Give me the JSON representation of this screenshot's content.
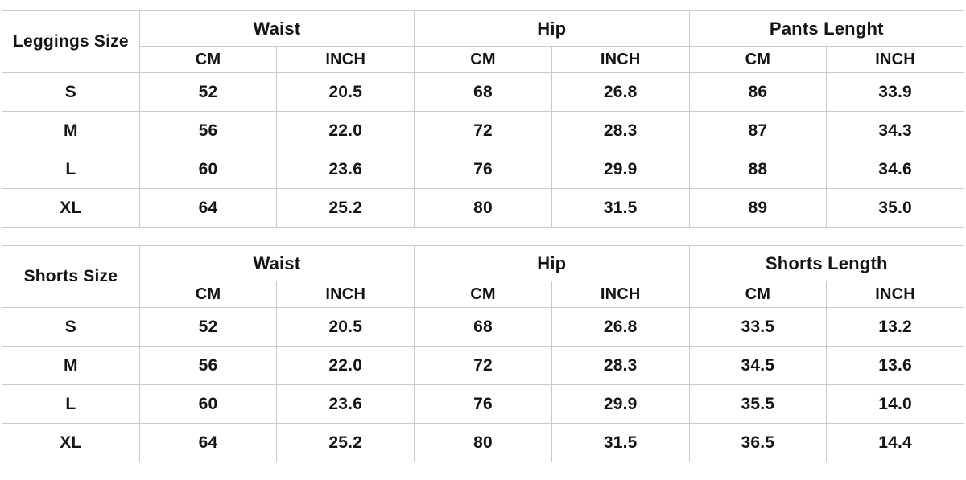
{
  "page": {
    "background_color": "#ffffff",
    "border_color": "#cacaca",
    "text_color": "#141414"
  },
  "leggings": {
    "title": "Leggings Size",
    "group_headers": [
      "Waist",
      "Hip",
      "Pants Lenght"
    ],
    "unit_headers": [
      "CM",
      "INCH",
      "CM",
      "INCH",
      "CM",
      "INCH"
    ],
    "rows": [
      {
        "size": "S",
        "cells": [
          "52",
          "20.5",
          "68",
          "26.8",
          "86",
          "33.9"
        ]
      },
      {
        "size": "M",
        "cells": [
          "56",
          "22.0",
          "72",
          "28.3",
          "87",
          "34.3"
        ]
      },
      {
        "size": "L",
        "cells": [
          "60",
          "23.6",
          "76",
          "29.9",
          "88",
          "34.6"
        ]
      },
      {
        "size": "XL",
        "cells": [
          "64",
          "25.2",
          "80",
          "31.5",
          "89",
          "35.0"
        ]
      }
    ]
  },
  "shorts": {
    "title": "Shorts Size",
    "group_headers": [
      "Waist",
      "Hip",
      "Shorts Length"
    ],
    "unit_headers": [
      "CM",
      "INCH",
      "CM",
      "INCH",
      "CM",
      "INCH"
    ],
    "rows": [
      {
        "size": "S",
        "cells": [
          "52",
          "20.5",
          "68",
          "26.8",
          "33.5",
          "13.2"
        ]
      },
      {
        "size": "M",
        "cells": [
          "56",
          "22.0",
          "72",
          "28.3",
          "34.5",
          "13.6"
        ]
      },
      {
        "size": "L",
        "cells": [
          "60",
          "23.6",
          "76",
          "29.9",
          "35.5",
          "14.0"
        ]
      },
      {
        "size": "XL",
        "cells": [
          "64",
          "25.2",
          "80",
          "31.5",
          "36.5",
          "14.4"
        ]
      }
    ]
  },
  "chart_data": [
    {
      "type": "table",
      "title": "Leggings Size",
      "columns": [
        "Leggings Size",
        "Waist CM",
        "Waist INCH",
        "Hip CM",
        "Hip INCH",
        "Pants Lenght CM",
        "Pants Lenght INCH"
      ],
      "rows": [
        [
          "S",
          52,
          20.5,
          68,
          26.8,
          86,
          33.9
        ],
        [
          "M",
          56,
          22.0,
          72,
          28.3,
          87,
          34.3
        ],
        [
          "L",
          60,
          23.6,
          76,
          29.9,
          88,
          34.6
        ],
        [
          "XL",
          64,
          25.2,
          80,
          31.5,
          89,
          35.0
        ]
      ]
    },
    {
      "type": "table",
      "title": "Shorts Size",
      "columns": [
        "Shorts Size",
        "Waist CM",
        "Waist INCH",
        "Hip CM",
        "Hip INCH",
        "Shorts Length CM",
        "Shorts Length INCH"
      ],
      "rows": [
        [
          "S",
          52,
          20.5,
          68,
          26.8,
          33.5,
          13.2
        ],
        [
          "M",
          56,
          22.0,
          72,
          28.3,
          34.5,
          13.6
        ],
        [
          "L",
          60,
          23.6,
          76,
          29.9,
          35.5,
          14.0
        ],
        [
          "XL",
          64,
          25.2,
          80,
          31.5,
          36.5,
          14.4
        ]
      ]
    }
  ]
}
